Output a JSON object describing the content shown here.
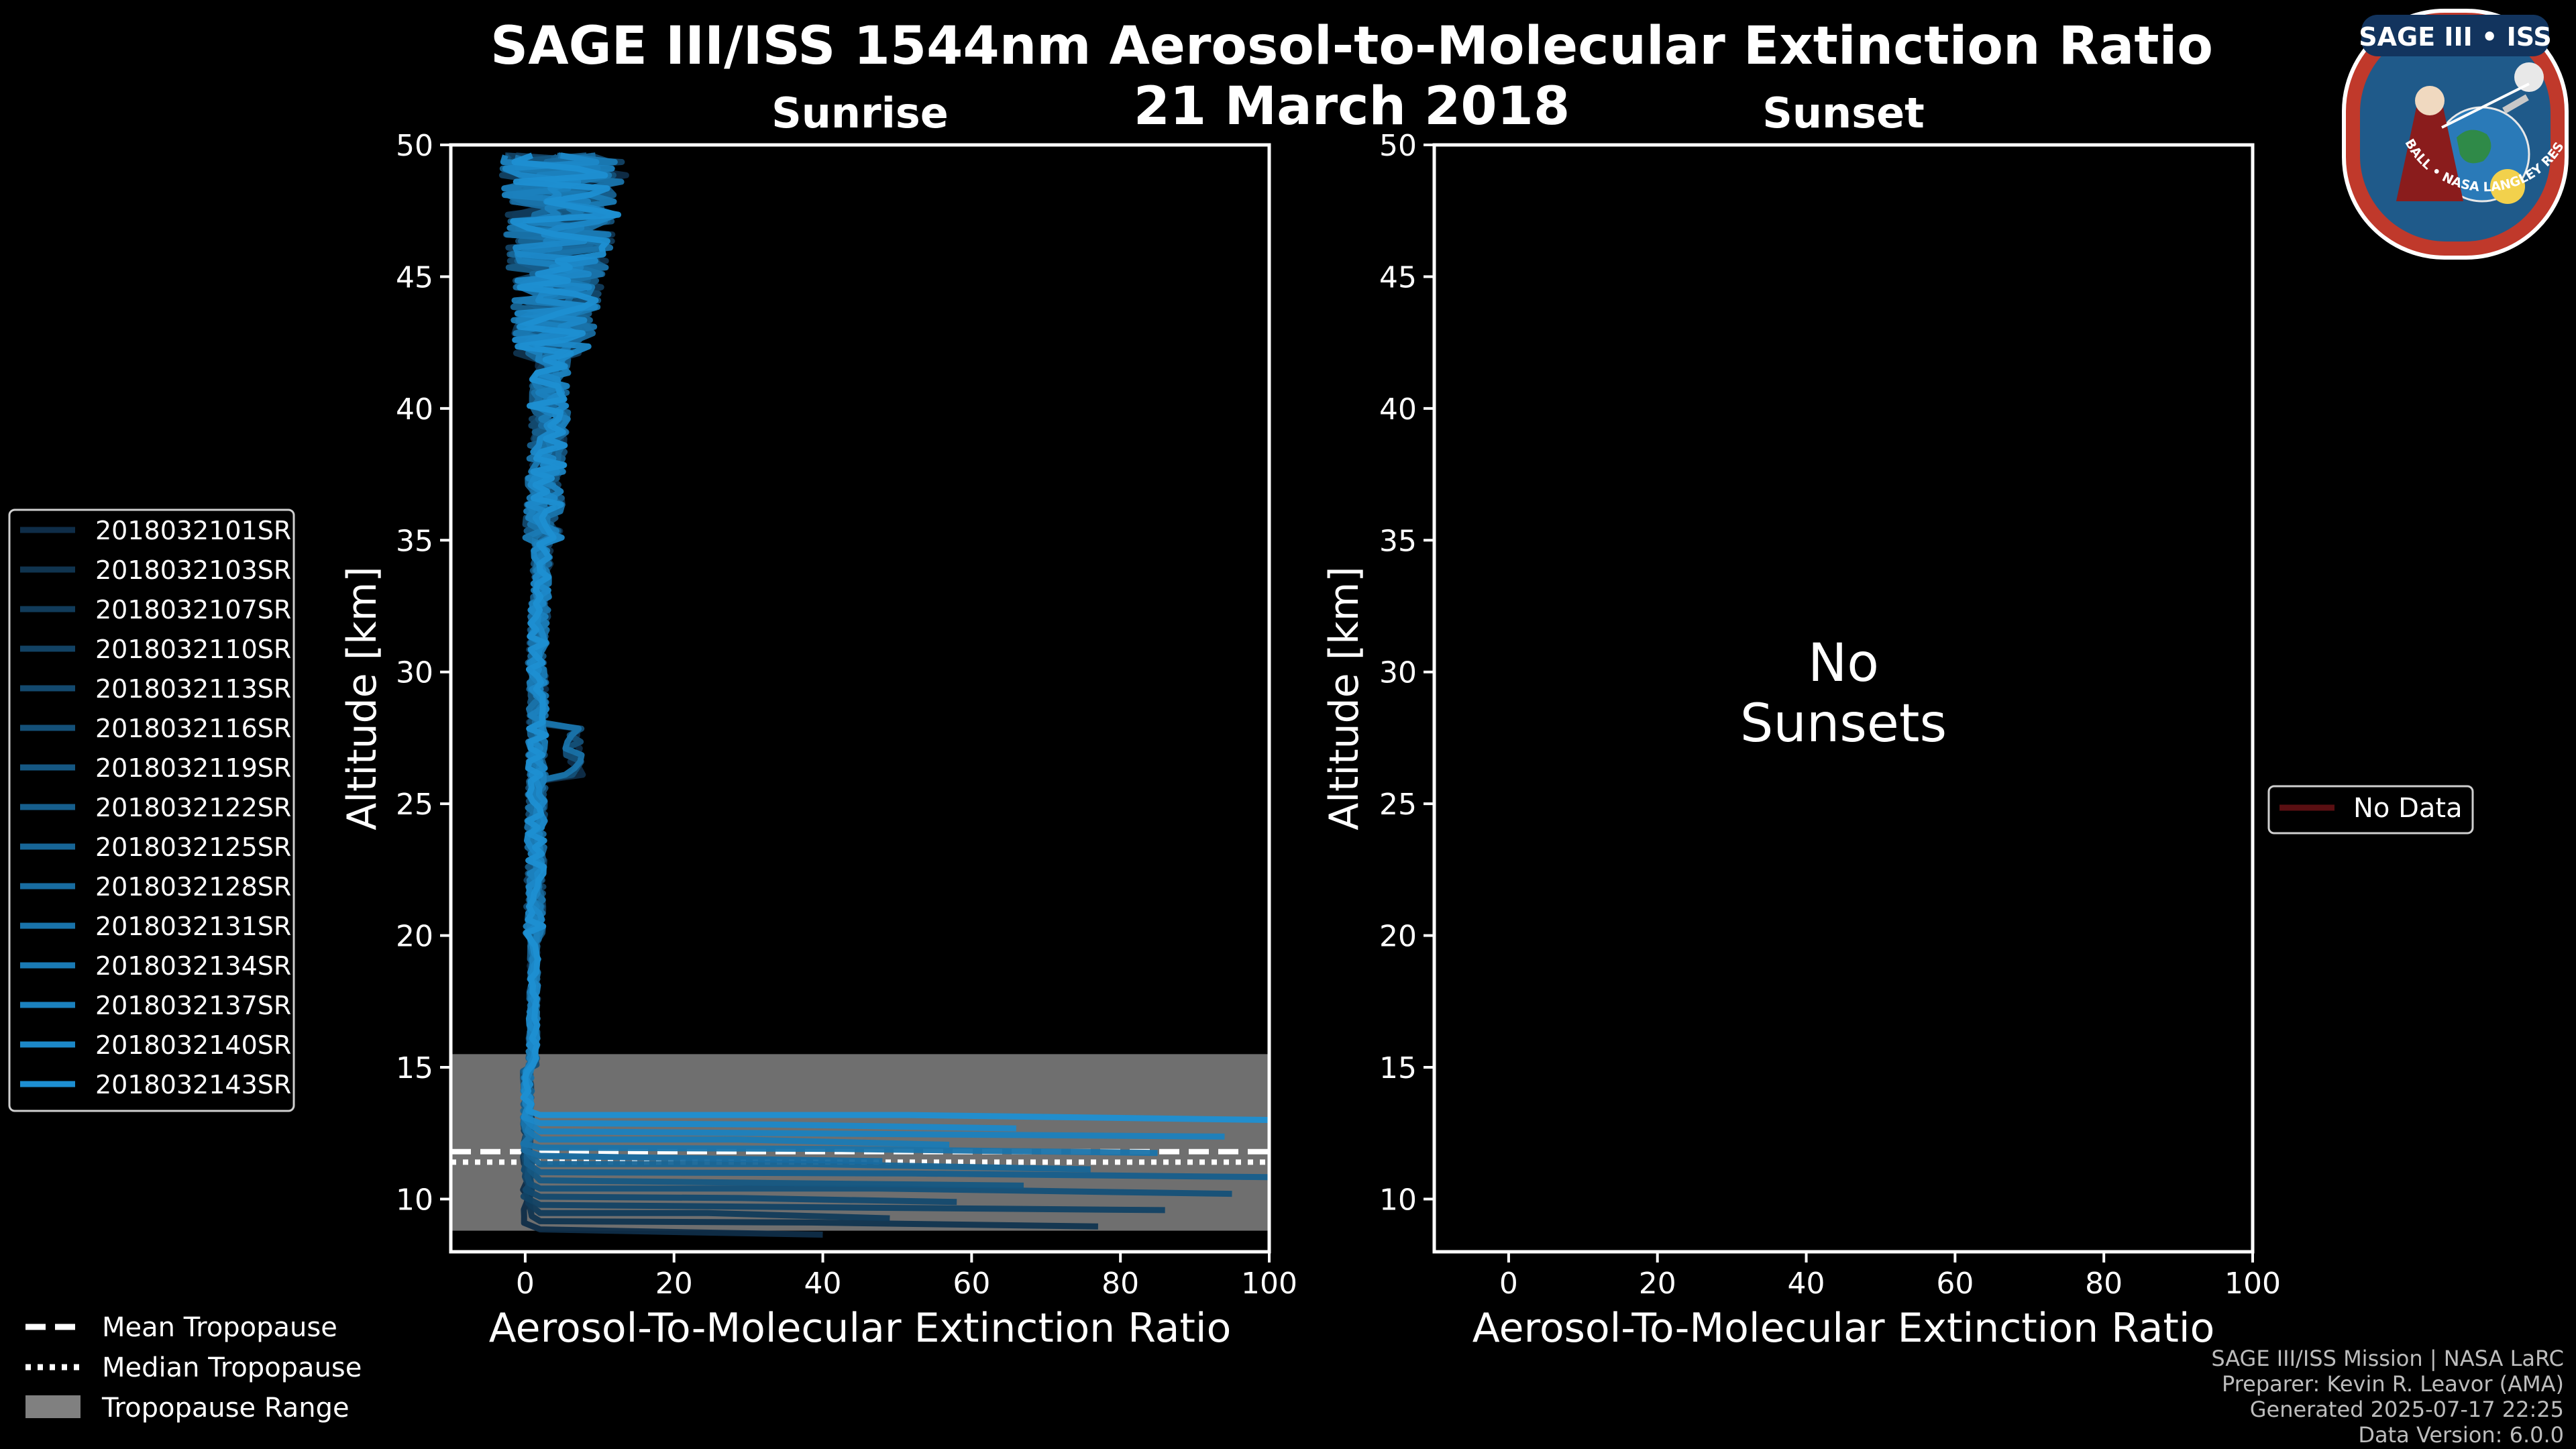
{
  "header": {
    "title": "SAGE III/ISS 1544nm Aerosol-to-Molecular Extinction Ratio",
    "date": "21 March 2018"
  },
  "logo": {
    "text": "SAGE III • ISS",
    "ring_text": "BALL • NASA LANGLEY RESEARCH CENTER • TAS-I • ESA",
    "colors": {
      "ring": "#c0392b",
      "field": "#1f5a8a",
      "navy": "#12345e"
    }
  },
  "footer": {
    "line1": "SAGE III/ISS Mission | NASA LaRC",
    "line2": "Preparer: Kevin R. Leavor (AMA)",
    "line3": "Generated 2025-07-17 22:25",
    "line4": "Data Version: 6.0.0"
  },
  "chart_data": [
    {
      "type": "line",
      "title": "Sunrise",
      "xlabel": "Aerosol-To-Molecular Extinction Ratio",
      "ylabel": "Altitude [km]",
      "xlim": [
        -10,
        100
      ],
      "ylim": [
        8,
        50
      ],
      "xticks": [
        0,
        20,
        40,
        60,
        80,
        100
      ],
      "yticks": [
        10,
        15,
        20,
        25,
        30,
        35,
        40,
        45,
        50
      ],
      "tropopause": {
        "range": [
          8.8,
          15.5
        ],
        "mean": 11.8,
        "median": 11.4
      },
      "series": [
        {
          "name": "2018032101SR",
          "color": "#0f2d48"
        },
        {
          "name": "2018032103SR",
          "color": "#10344f"
        },
        {
          "name": "2018032107SR",
          "color": "#113b5a"
        },
        {
          "name": "2018032110SR",
          "color": "#124264"
        },
        {
          "name": "2018032113SR",
          "color": "#13496e"
        },
        {
          "name": "2018032116SR",
          "color": "#145078"
        },
        {
          "name": "2018032119SR",
          "color": "#155782"
        },
        {
          "name": "2018032122SR",
          "color": "#165e8c"
        },
        {
          "name": "2018032125SR",
          "color": "#176596"
        },
        {
          "name": "2018032128SR",
          "color": "#186ca0"
        },
        {
          "name": "2018032131SR",
          "color": "#1973aa"
        },
        {
          "name": "2018032134SR",
          "color": "#1a7ab4"
        },
        {
          "name": "2018032137SR",
          "color": "#1b81be"
        },
        {
          "name": "2018032140SR",
          "color": "#1c88c8"
        },
        {
          "name": "2018032143SR",
          "color": "#1d8fd2"
        }
      ]
    },
    {
      "type": "line",
      "title": "Sunset",
      "xlabel": "Aerosol-To-Molecular Extinction Ratio",
      "ylabel": "Altitude [km]",
      "xlim": [
        -10,
        100
      ],
      "ylim": [
        8,
        50
      ],
      "xticks": [
        0,
        20,
        40,
        60,
        80,
        100
      ],
      "yticks": [
        10,
        15,
        20,
        25,
        30,
        35,
        40,
        45,
        50
      ],
      "message_line1": "No",
      "message_line2": "Sunsets",
      "series": [
        {
          "name": "No Data",
          "color": "#5a0f12"
        }
      ]
    }
  ],
  "legend_tropopause": [
    {
      "label": "Mean Tropopause",
      "style": "dashed"
    },
    {
      "label": "Median Tropopause",
      "style": "dotted"
    },
    {
      "label": "Tropopause Range",
      "style": "patch"
    }
  ]
}
